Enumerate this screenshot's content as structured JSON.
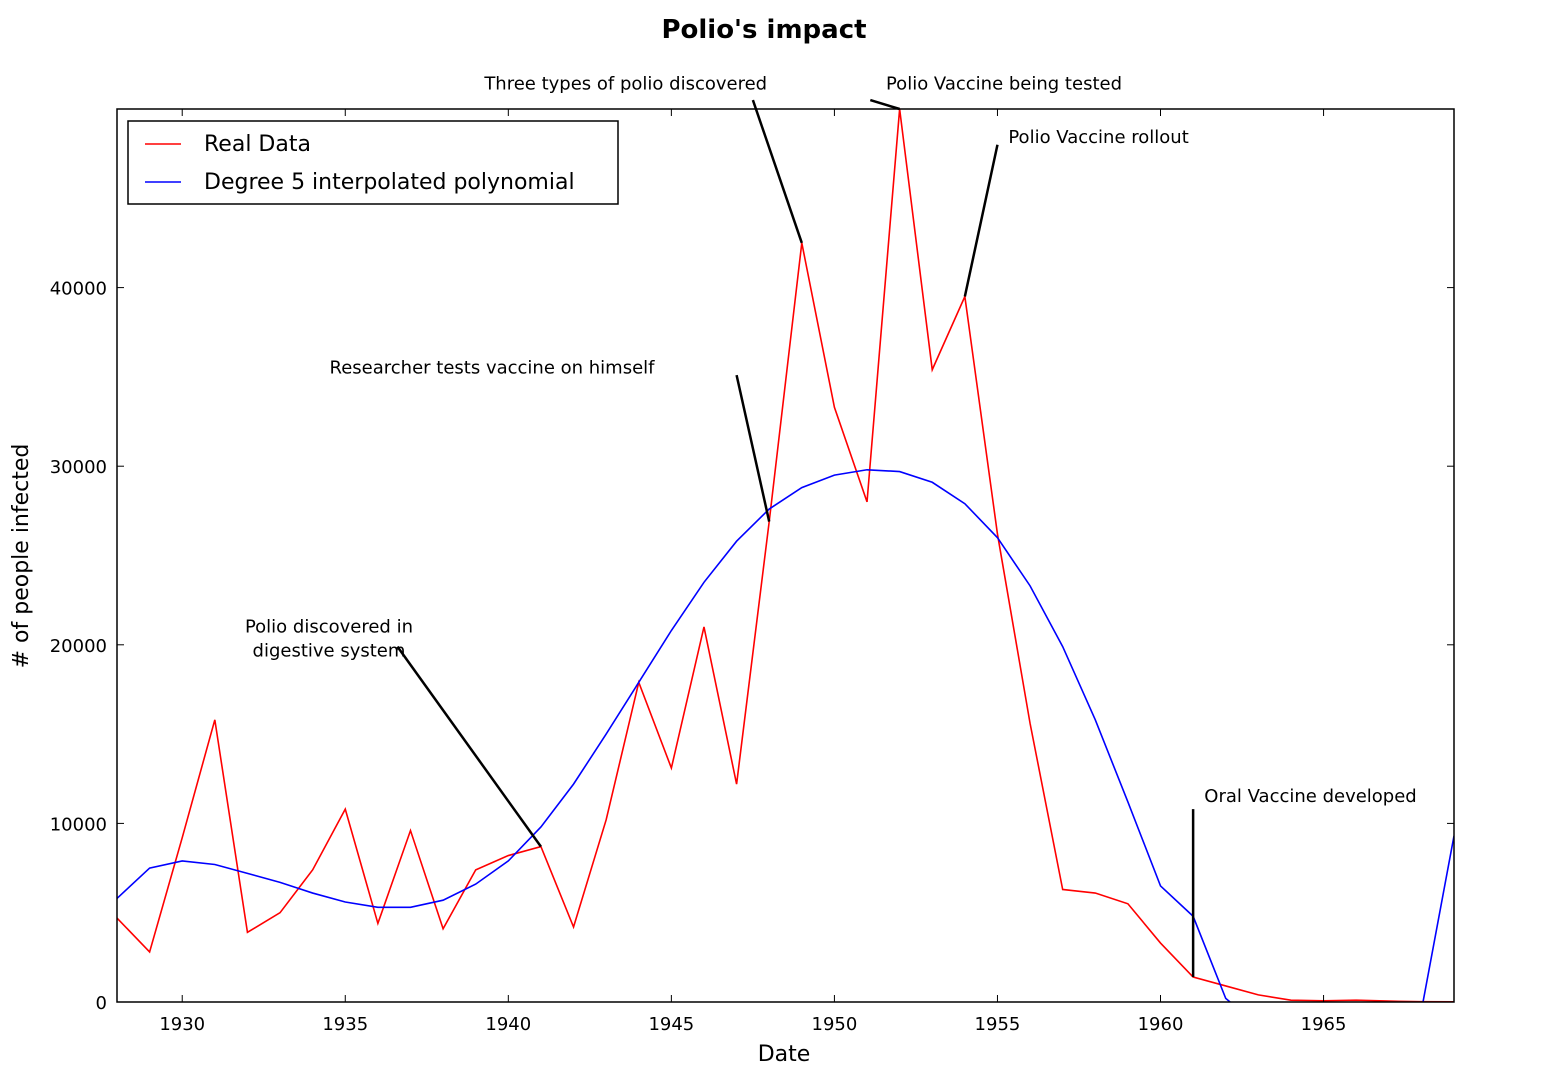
{
  "chart_data": {
    "type": "line",
    "title": "Polio's impact",
    "xlabel": "Date",
    "ylabel": "# of people infected",
    "xlim": [
      1928,
      1969
    ],
    "ylim": [
      0,
      50000
    ],
    "xticks": [
      1930,
      1935,
      1940,
      1945,
      1950,
      1955,
      1960,
      1965
    ],
    "yticks": [
      0,
      10000,
      20000,
      30000,
      40000
    ],
    "grid": false,
    "legend_position": "top-left",
    "series": [
      {
        "name": "Real Data",
        "color": "#ff0000",
        "points": [
          [
            1928,
            4700
          ],
          [
            1929,
            2800
          ],
          [
            1930,
            9200
          ],
          [
            1931,
            15800
          ],
          [
            1932,
            3900
          ],
          [
            1933,
            5000
          ],
          [
            1934,
            7400
          ],
          [
            1935,
            10800
          ],
          [
            1936,
            4400
          ],
          [
            1937,
            9600
          ],
          [
            1938,
            4100
          ],
          [
            1939,
            7400
          ],
          [
            1940,
            8200
          ],
          [
            1941,
            8700
          ],
          [
            1942,
            4200
          ],
          [
            1943,
            10200
          ],
          [
            1944,
            17900
          ],
          [
            1945,
            13100
          ],
          [
            1946,
            21000
          ],
          [
            1947,
            12200
          ],
          [
            1948,
            26900
          ],
          [
            1949,
            42500
          ],
          [
            1950,
            33300
          ],
          [
            1951,
            28000
          ],
          [
            1952,
            50000
          ],
          [
            1953,
            35400
          ],
          [
            1954,
            39500
          ],
          [
            1955,
            26200
          ],
          [
            1956,
            15600
          ],
          [
            1957,
            6300
          ],
          [
            1958,
            6100
          ],
          [
            1959,
            5500
          ],
          [
            1960,
            3300
          ],
          [
            1961,
            1400
          ],
          [
            1962,
            900
          ],
          [
            1963,
            400
          ],
          [
            1964,
            100
          ],
          [
            1965,
            70
          ],
          [
            1966,
            100
          ],
          [
            1967,
            50
          ],
          [
            1968,
            20
          ],
          [
            1969,
            10
          ]
        ]
      },
      {
        "name": "Degree 5 interpolated polynomial",
        "color": "#0000ff",
        "points": [
          [
            1928,
            5800
          ],
          [
            1929,
            7500
          ],
          [
            1930,
            7900
          ],
          [
            1931,
            7700
          ],
          [
            1932,
            7200
          ],
          [
            1933,
            6700
          ],
          [
            1934,
            6100
          ],
          [
            1935,
            5600
          ],
          [
            1936,
            5300
          ],
          [
            1937,
            5300
          ],
          [
            1938,
            5700
          ],
          [
            1939,
            6600
          ],
          [
            1940,
            7900
          ],
          [
            1941,
            9800
          ],
          [
            1942,
            12200
          ],
          [
            1943,
            15000
          ],
          [
            1944,
            17900
          ],
          [
            1945,
            20800
          ],
          [
            1946,
            23500
          ],
          [
            1947,
            25800
          ],
          [
            1948,
            27600
          ],
          [
            1949,
            28800
          ],
          [
            1950,
            29500
          ],
          [
            1951,
            29800
          ],
          [
            1952,
            29700
          ],
          [
            1953,
            29100
          ],
          [
            1954,
            27900
          ],
          [
            1955,
            26000
          ],
          [
            1956,
            23300
          ],
          [
            1957,
            19900
          ],
          [
            1958,
            15800
          ],
          [
            1959,
            11200
          ],
          [
            1960,
            6500
          ],
          [
            1961,
            4800
          ],
          [
            1962,
            200
          ],
          [
            1962.2,
            -100
          ],
          [
            1968,
            -100
          ],
          [
            1968.05,
            0
          ],
          [
            1969,
            9300
          ]
        ]
      }
    ],
    "annotations": [
      {
        "text": "Polio discovered in\ndigestive system",
        "xy": [
          1941,
          8700
        ],
        "text_at": [
          1934.5,
          20700
        ],
        "line_start": [
          1936.6,
          19900
        ]
      },
      {
        "text": "Researcher tests vaccine on himself",
        "xy": [
          1948,
          26900
        ],
        "text_at": [
          1939.5,
          35200
        ],
        "line_start": [
          1947,
          35100
        ]
      },
      {
        "text": "Three types of polio discovered",
        "xy": [
          1949,
          42500
        ],
        "text_at": [
          1943.6,
          51100
        ],
        "line_start": [
          1947.5,
          50500
        ]
      },
      {
        "text": "Polio Vaccine being tested",
        "xy": [
          1952,
          50000
        ],
        "text_at": [
          1955.2,
          51100
        ],
        "line_start": [
          1951.1,
          50500
        ]
      },
      {
        "text": "Polio Vaccine rollout",
        "xy": [
          1954,
          39500
        ],
        "text_at": [
          1958.1,
          48100
        ],
        "line_start": [
          1955,
          48000
        ]
      },
      {
        "text": "Oral Vaccine developed",
        "xy": [
          1961,
          1400
        ],
        "text_at": [
          1964.6,
          11200
        ],
        "line_start": [
          1961,
          10800
        ]
      }
    ]
  }
}
